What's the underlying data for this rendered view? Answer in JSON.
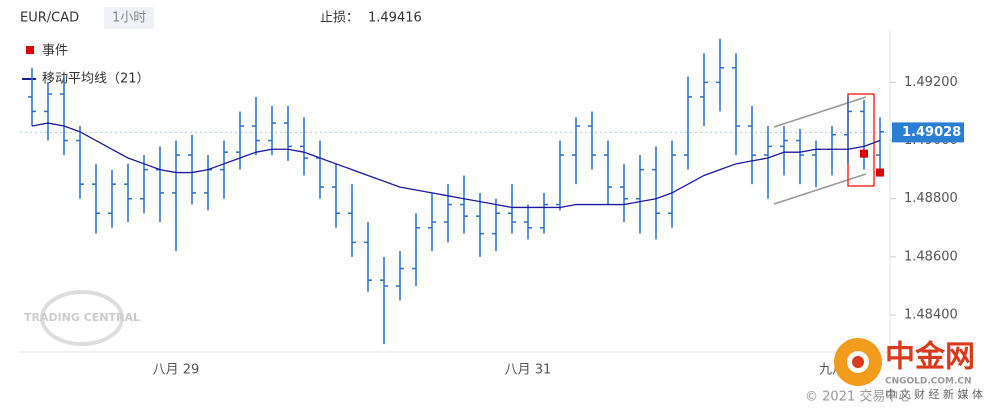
{
  "chart_data": {
    "type": "ohlc",
    "symbol": "EUR/CAD",
    "timeframe": "1小时",
    "stop_loss_label": "止损：",
    "stop_loss": 1.49416,
    "color": "#2a6ebb",
    "categories": [
      null,
      null,
      null,
      null,
      null,
      null,
      null,
      null,
      null,
      "八月 29",
      null,
      null,
      null,
      null,
      null,
      null,
      null,
      null,
      null,
      null,
      null,
      null,
      null,
      null,
      null,
      null,
      null,
      null,
      null,
      null,
      null,
      "八月 31",
      null,
      null,
      null,
      null,
      null,
      null,
      null,
      null,
      null,
      null,
      null,
      null,
      null,
      null,
      null,
      null,
      null,
      null,
      "九月",
      null,
      null,
      null
    ],
    "open": [
      1.4915,
      1.491,
      1.4916,
      1.49,
      1.4885,
      1.4875,
      1.4885,
      1.488,
      1.489,
      1.4882,
      1.4895,
      1.4882,
      1.489,
      1.4896,
      1.4905,
      1.49,
      1.4906,
      1.4898,
      1.4894,
      1.4884,
      1.4875,
      1.4865,
      1.4852,
      1.485,
      1.4856,
      1.487,
      1.4872,
      1.4878,
      1.4874,
      1.4868,
      1.4875,
      1.4872,
      1.487,
      1.4878,
      1.4895,
      1.4905,
      1.4895,
      1.4884,
      1.488,
      1.489,
      1.4875,
      1.4895,
      1.4915,
      1.492,
      1.4925,
      1.4905,
      1.4895,
      1.4898,
      1.49,
      1.4895,
      1.4897,
      1.4902,
      1.491,
      1.4895
    ],
    "high": [
      1.4925,
      1.492,
      1.4922,
      1.4905,
      1.4892,
      1.489,
      1.4892,
      1.4895,
      1.4898,
      1.49,
      1.4902,
      1.4895,
      1.49,
      1.491,
      1.4915,
      1.4912,
      1.4912,
      1.4908,
      1.49,
      1.4892,
      1.4885,
      1.4872,
      1.486,
      1.4862,
      1.4875,
      1.4882,
      1.4885,
      1.4888,
      1.4882,
      1.488,
      1.4885,
      1.4878,
      1.4882,
      1.49,
      1.4908,
      1.491,
      1.49,
      1.4892,
      1.4895,
      1.4898,
      1.49,
      1.4922,
      1.493,
      1.4935,
      1.493,
      1.4912,
      1.4905,
      1.4905,
      1.4904,
      1.49,
      1.4905,
      1.4915,
      1.4914,
      1.4908
    ],
    "low": [
      1.4905,
      1.49,
      1.4895,
      1.488,
      1.4868,
      1.487,
      1.4872,
      1.4875,
      1.4872,
      1.4862,
      1.4878,
      1.4876,
      1.488,
      1.489,
      1.4895,
      1.4895,
      1.4893,
      1.4888,
      1.488,
      1.487,
      1.486,
      1.4848,
      1.483,
      1.4845,
      1.485,
      1.4862,
      1.4865,
      1.4868,
      1.486,
      1.4862,
      1.4868,
      1.4866,
      1.4868,
      1.4876,
      1.4885,
      1.489,
      1.4878,
      1.4872,
      1.4868,
      1.4866,
      1.487,
      1.489,
      1.4905,
      1.491,
      1.4895,
      1.4885,
      1.488,
      1.4888,
      1.4885,
      1.4884,
      1.4888,
      1.4892,
      1.489,
      1.489
    ],
    "close": [
      1.491,
      1.4916,
      1.49,
      1.4885,
      1.4875,
      1.4885,
      1.488,
      1.489,
      1.4882,
      1.4895,
      1.4882,
      1.489,
      1.4896,
      1.4905,
      1.49,
      1.4906,
      1.4898,
      1.4894,
      1.4884,
      1.4875,
      1.4865,
      1.4852,
      1.485,
      1.4856,
      1.487,
      1.4872,
      1.4878,
      1.4874,
      1.4868,
      1.4875,
      1.4872,
      1.487,
      1.4878,
      1.4895,
      1.4905,
      1.4895,
      1.4884,
      1.488,
      1.489,
      1.4875,
      1.4895,
      1.4915,
      1.492,
      1.4925,
      1.4905,
      1.4895,
      1.4898,
      1.49,
      1.4895,
      1.4897,
      1.4902,
      1.491,
      1.4895,
      1.4903
    ],
    "series": [
      {
        "name": "移动平均线（21）",
        "color": "#1a1a9e",
        "values": [
          1.4905,
          1.4906,
          1.4905,
          1.4903,
          1.49,
          1.4897,
          1.4894,
          1.4892,
          1.489,
          1.4889,
          1.4889,
          1.489,
          1.4892,
          1.4894,
          1.4896,
          1.4897,
          1.4897,
          1.4896,
          1.4894,
          1.4892,
          1.489,
          1.4888,
          1.4886,
          1.4884,
          1.4883,
          1.4882,
          1.4881,
          1.488,
          1.4879,
          1.4878,
          1.4877,
          1.4877,
          1.4877,
          1.4877,
          1.4878,
          1.4878,
          1.4878,
          1.4878,
          1.4879,
          1.488,
          1.4882,
          1.4885,
          1.4888,
          1.489,
          1.4892,
          1.4893,
          1.4894,
          1.4896,
          1.4896,
          1.4897,
          1.4897,
          1.4897,
          1.4898,
          1.49
        ]
      }
    ],
    "events": {
      "name": "事件",
      "color": "#dd0000",
      "values": [
        null,
        null,
        null,
        null,
        null,
        null,
        null,
        null,
        null,
        null,
        null,
        null,
        null,
        null,
        null,
        null,
        null,
        null,
        null,
        null,
        null,
        null,
        null,
        null,
        null,
        null,
        null,
        null,
        null,
        null,
        null,
        null,
        null,
        null,
        null,
        null,
        null,
        null,
        null,
        null,
        null,
        null,
        null,
        null,
        null,
        null,
        null,
        null,
        null,
        null,
        null,
        null,
        1.48955,
        1.4889
      ]
    },
    "last_price": 1.49028,
    "last_price_color": "#2a7fd4",
    "ylim": [
      1.4828,
      1.4938
    ],
    "yticks": [
      {
        "value": 1.484,
        "label": "1.48400"
      },
      {
        "value": 1.486,
        "label": "1.48600"
      },
      {
        "value": 1.488,
        "label": "1.48800"
      },
      {
        "value": 1.49,
        "label": "1.49000"
      },
      {
        "value": 1.492,
        "label": "1.49200"
      }
    ]
  },
  "watermarks": {
    "trading_central": "TRADING CENTRAL",
    "brand": "中金网",
    "domain": "CNGOLD.COM.CN",
    "slogan": "中 文 财 经 新 媒 体",
    "copyright": "© 2021 交易中心"
  }
}
